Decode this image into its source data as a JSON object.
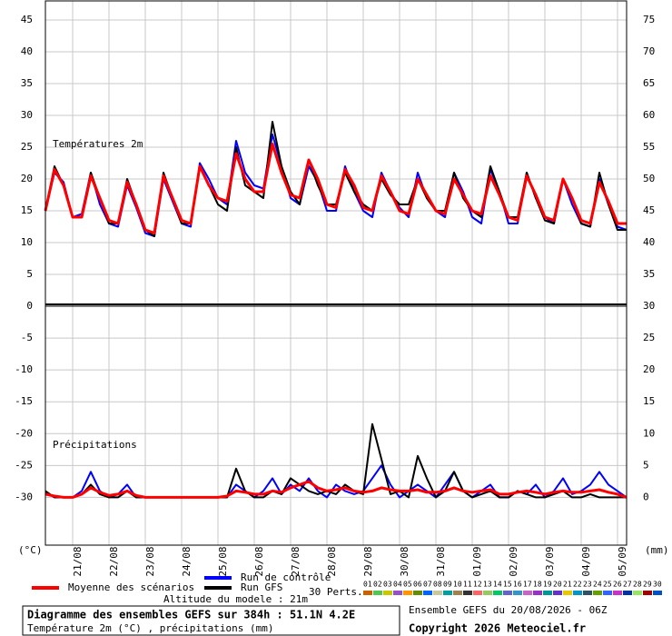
{
  "chart_data": [
    {
      "type": "line",
      "title": "Températures 2m",
      "x": [
        0,
        6,
        12,
        18,
        24,
        30,
        36,
        42,
        48,
        54,
        60,
        66,
        72,
        78,
        84,
        90,
        96,
        102,
        108,
        114,
        120,
        126,
        132,
        138,
        144,
        150,
        156,
        162,
        168,
        174,
        180,
        186,
        192,
        198,
        204,
        210,
        216,
        222,
        228,
        234,
        240,
        246,
        252,
        258,
        264,
        270,
        276,
        282,
        288,
        294,
        300,
        306,
        312,
        318,
        324,
        330,
        336,
        342,
        348,
        354,
        360,
        366,
        372,
        378,
        384
      ],
      "xlim": [
        0,
        384
      ],
      "ylim": [
        0,
        48
      ],
      "yticks": [
        0,
        5,
        10,
        15,
        20,
        25,
        30,
        35,
        40,
        45
      ],
      "y2lim": [
        30,
        78
      ],
      "y2ticks": [
        35,
        40,
        45,
        50,
        55,
        60,
        65,
        70,
        75
      ],
      "grid": true,
      "series": [
        {
          "name": "Run de contrôle",
          "color": "#0000ff",
          "values": [
            15,
            21,
            19.5,
            14,
            14.5,
            21,
            16,
            13,
            12.5,
            19,
            15.5,
            11.5,
            11,
            20,
            16.5,
            13,
            12.5,
            22.5,
            20,
            17,
            16,
            26,
            21,
            19,
            18.5,
            27,
            22,
            17,
            16,
            22,
            19.5,
            15,
            15,
            22,
            18,
            15,
            14,
            21,
            18,
            15.5,
            14,
            21,
            17,
            15,
            14,
            21,
            18,
            14,
            13,
            21.5,
            18,
            13,
            13,
            21,
            17,
            14,
            13,
            20,
            16,
            13,
            12.5,
            20,
            16,
            12.5,
            12
          ]
        },
        {
          "name": "Run GFS",
          "color": "#000000",
          "values": [
            15,
            22,
            19,
            14,
            14,
            21,
            17,
            13,
            13,
            20,
            16,
            12,
            11,
            21,
            17,
            13,
            13,
            22,
            19,
            16,
            15,
            25,
            19,
            18,
            17,
            29,
            22,
            18,
            16,
            23,
            19,
            16,
            16,
            21,
            18,
            16,
            15,
            20,
            17.5,
            16,
            16,
            20,
            17,
            15,
            15,
            21,
            17,
            15,
            14,
            22,
            18,
            14,
            14,
            21,
            17,
            13.5,
            13,
            20,
            17,
            13,
            12.5,
            21,
            16,
            12,
            12
          ]
        },
        {
          "name": "Moyenne des scénarios",
          "color": "#ff0000",
          "values": [
            15,
            21.5,
            19,
            14,
            14,
            20.5,
            17,
            13.5,
            13,
            19.5,
            16,
            12,
            11.5,
            20.5,
            17,
            13.5,
            13,
            22,
            19,
            17,
            16.5,
            24,
            20,
            18,
            18,
            25.5,
            21,
            17.5,
            17,
            23,
            20,
            16,
            15.5,
            21.5,
            19,
            15.5,
            15,
            20.5,
            18,
            15,
            14.5,
            20,
            17.5,
            15,
            14.5,
            20,
            17.5,
            15,
            14.5,
            20.5,
            17.5,
            14,
            13.5,
            20.5,
            17.5,
            14,
            13.5,
            20,
            17,
            13.5,
            13,
            19.5,
            16.5,
            13,
            13
          ]
        }
      ]
    },
    {
      "type": "line",
      "title": "Précipitations",
      "x": [
        0,
        6,
        12,
        18,
        24,
        30,
        36,
        42,
        48,
        54,
        60,
        66,
        72,
        78,
        84,
        90,
        96,
        102,
        108,
        114,
        120,
        126,
        132,
        138,
        144,
        150,
        156,
        162,
        168,
        174,
        180,
        186,
        192,
        198,
        204,
        210,
        216,
        222,
        228,
        234,
        240,
        246,
        252,
        258,
        264,
        270,
        276,
        282,
        288,
        294,
        300,
        306,
        312,
        318,
        324,
        330,
        336,
        342,
        348,
        354,
        360,
        366,
        372,
        378,
        384
      ],
      "xlim": [
        0,
        384
      ],
      "xticks": [
        {
          "value": 18,
          "label": "21/08"
        },
        {
          "value": 42,
          "label": "22/08"
        },
        {
          "value": 66,
          "label": "23/08"
        },
        {
          "value": 90,
          "label": "24/08"
        },
        {
          "value": 114,
          "label": "25/08"
        },
        {
          "value": 138,
          "label": "26/08"
        },
        {
          "value": 162,
          "label": "27/08"
        },
        {
          "value": 186,
          "label": "28/08"
        },
        {
          "value": 210,
          "label": "29/08"
        },
        {
          "value": 234,
          "label": "30/08"
        },
        {
          "value": 258,
          "label": "31/08"
        },
        {
          "value": 282,
          "label": "01/09"
        },
        {
          "value": 306,
          "label": "02/09"
        },
        {
          "value": 330,
          "label": "03/09"
        },
        {
          "value": 354,
          "label": "04/09"
        },
        {
          "value": 378,
          "label": "05/09"
        }
      ],
      "xlabel": "(°C)",
      "y2label": "(mm)",
      "ylim": [
        -37.5,
        0
      ],
      "yticks": [
        -5,
        -10,
        -15,
        -20,
        -25,
        -30
      ],
      "y2lim": [
        -7.5,
        30
      ],
      "y2ticks": [
        0,
        5,
        10,
        15,
        20,
        25,
        30
      ],
      "grid": true,
      "series": [
        {
          "color": "#0000ff",
          "axis": "y2",
          "values": [
            0.8,
            0,
            0,
            0,
            1,
            4,
            1,
            0,
            0.5,
            2,
            0,
            0,
            0,
            0,
            0,
            0,
            0,
            0,
            0,
            0,
            0,
            2,
            1,
            0,
            1,
            3,
            0.5,
            2,
            1,
            3,
            1,
            0,
            2,
            1,
            0.5,
            1,
            3,
            5,
            2,
            0,
            1,
            2,
            1,
            0,
            2,
            4,
            1,
            0,
            1,
            2,
            0,
            0,
            1,
            0.5,
            2,
            0,
            1,
            3,
            0.5,
            1,
            2,
            4,
            2,
            1,
            0
          ]
        },
        {
          "color": "#000000",
          "axis": "y2",
          "values": [
            1,
            0,
            0,
            0,
            0.5,
            2,
            0.5,
            0,
            0,
            1,
            0,
            0,
            0,
            0,
            0,
            0,
            0,
            0,
            0,
            0,
            0,
            4.5,
            1,
            0,
            0,
            1,
            0.5,
            3,
            2,
            1,
            0.5,
            1,
            0.5,
            2,
            1,
            0.5,
            11.5,
            6,
            0.5,
            1,
            0,
            6.5,
            3,
            0,
            1,
            4,
            1,
            0,
            0.5,
            1,
            0,
            0,
            1,
            0.5,
            0,
            0,
            0.5,
            1,
            0,
            0,
            0.5,
            0,
            0,
            0,
            0
          ]
        },
        {
          "color": "#ff0000",
          "axis": "y2",
          "values": [
            0.5,
            0.2,
            0,
            0,
            0.5,
            1.5,
            0.8,
            0.3,
            0.5,
            1,
            0.3,
            0,
            0,
            0,
            0,
            0,
            0,
            0,
            0,
            0,
            0.2,
            1,
            0.8,
            0.5,
            0.5,
            1,
            0.8,
            1.5,
            2,
            2.5,
            1.5,
            1,
            1.2,
            1.5,
            1,
            0.8,
            1,
            1.5,
            1.2,
            1,
            1,
            1.2,
            0.8,
            0.8,
            1,
            1.5,
            1,
            0.8,
            1,
            1.2,
            0.5,
            0.5,
            0.8,
            1,
            0.8,
            0.5,
            0.8,
            1,
            0.8,
            0.8,
            1,
            1.2,
            0.8,
            0.5,
            0
          ]
        }
      ]
    }
  ],
  "legend": {
    "label": "30 Perts.",
    "members": [
      {
        "label": "01",
        "color": "#c86400"
      },
      {
        "label": "02",
        "color": "#50c850"
      },
      {
        "label": "03",
        "color": "#c8c800"
      },
      {
        "label": "04",
        "color": "#9650c8"
      },
      {
        "label": "05",
        "color": "#ff9600"
      },
      {
        "label": "06",
        "color": "#648c00"
      },
      {
        "label": "07",
        "color": "#0064ff"
      },
      {
        "label": "08",
        "color": "#c8c8a0"
      },
      {
        "label": "09",
        "color": "#00a0a0"
      },
      {
        "label": "10",
        "color": "#a08250"
      },
      {
        "label": "11",
        "color": "#323232"
      },
      {
        "label": "12",
        "color": "#ff6464"
      },
      {
        "label": "13",
        "color": "#96c864"
      },
      {
        "label": "14",
        "color": "#00c864"
      },
      {
        "label": "15",
        "color": "#6464c8"
      },
      {
        "label": "16",
        "color": "#3296c8"
      },
      {
        "label": "17",
        "color": "#c864c8"
      },
      {
        "label": "18",
        "color": "#9632c8"
      },
      {
        "label": "19",
        "color": "#009696"
      },
      {
        "label": "20",
        "color": "#6432c8"
      },
      {
        "label": "21",
        "color": "#e6c800"
      },
      {
        "label": "22",
        "color": "#0096c8"
      },
      {
        "label": "23",
        "color": "#325064"
      },
      {
        "label": "24",
        "color": "#64a000"
      },
      {
        "label": "25",
        "color": "#3264ff"
      },
      {
        "label": "26",
        "color": "#c832c8"
      },
      {
        "label": "27",
        "color": "#0032a0"
      },
      {
        "label": "28",
        "color": "#96e664"
      },
      {
        "label": "29",
        "color": "#a00000"
      },
      {
        "label": "30",
        "color": "#0050c8"
      }
    ]
  },
  "footer": {
    "altitude": "Altitude du modele : 21m",
    "title": "Diagramme des ensembles GEFS sur 384h : 51.1N 4.2E",
    "subtitle": "Température 2m (°C) , précipitations (mm)",
    "run": "Ensemble GEFS du 20/08/2026 - 06Z",
    "copyright": "Copyright 2026 Meteociel.fr"
  }
}
